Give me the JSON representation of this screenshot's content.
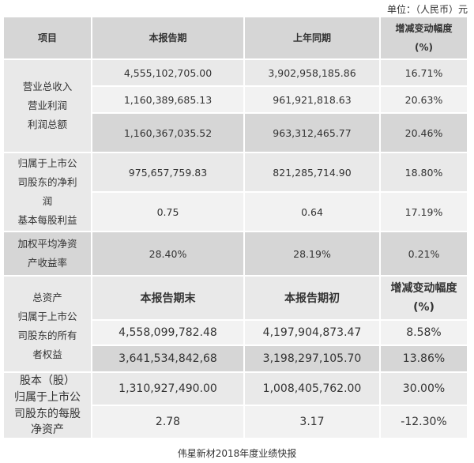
{
  "unit_label": "单位：（人民币）元",
  "caption": "伟星新材2018年度业绩快报",
  "header": {
    "item": "项目",
    "current": "本报告期",
    "prior": "上年同期",
    "change_line1": "增减变动幅度",
    "change_line2": "(%)"
  },
  "block1_labels": [
    "营业总收入",
    "营业利润",
    "利润总额"
  ],
  "block1_rows": [
    {
      "current": "4,555,102,705.00",
      "prior": "3,902,958,185.86",
      "change": "16.71%"
    },
    {
      "current": "1,160,389,685.13",
      "prior": "961,921,818.63",
      "change": "20.63%"
    },
    {
      "current": "1,160,367,035.52",
      "prior": "963,312,465.77",
      "change": "20.46%"
    }
  ],
  "block2_labels": [
    "归属于上市公",
    "司股东的净利",
    "润",
    "基本每股利益"
  ],
  "block2_rows": [
    {
      "current": "975,657,759.83",
      "prior": "821,285,714.90",
      "change": "18.80%"
    },
    {
      "current": "0.75",
      "prior": "0.64",
      "change": "17.19%"
    }
  ],
  "block3_labels": [
    "加权平均净资",
    "产收益率"
  ],
  "block3_row": {
    "current": "28.40%",
    "prior": "28.19%",
    "change": "0.21%"
  },
  "block4_labels": [
    "总资产",
    "归属于上市公",
    "司股东的所有",
    "者权益"
  ],
  "block4_header": {
    "current": "本报告期末",
    "prior": "本报告期初",
    "change_line1": "增减变动幅度",
    "change_line2": "(%)"
  },
  "block4_rows": [
    {
      "current": "4,558,099,782.48",
      "prior": "4,197,904,873.47",
      "change": "8.58%"
    },
    {
      "current": "3,641,534,842,68",
      "prior": "3,198,297,105.70",
      "change": "13.86%"
    }
  ],
  "block5_labels": [
    "股本（股）",
    "归属于上市公",
    "司股东的每股",
    "净资产"
  ],
  "block5_rows": [
    {
      "current": "1,310,927,490.00",
      "prior": "1,008,405,762.00",
      "change": "30.00%"
    },
    {
      "current": "2.78",
      "prior": "3.17",
      "change": "-12.30%"
    }
  ]
}
